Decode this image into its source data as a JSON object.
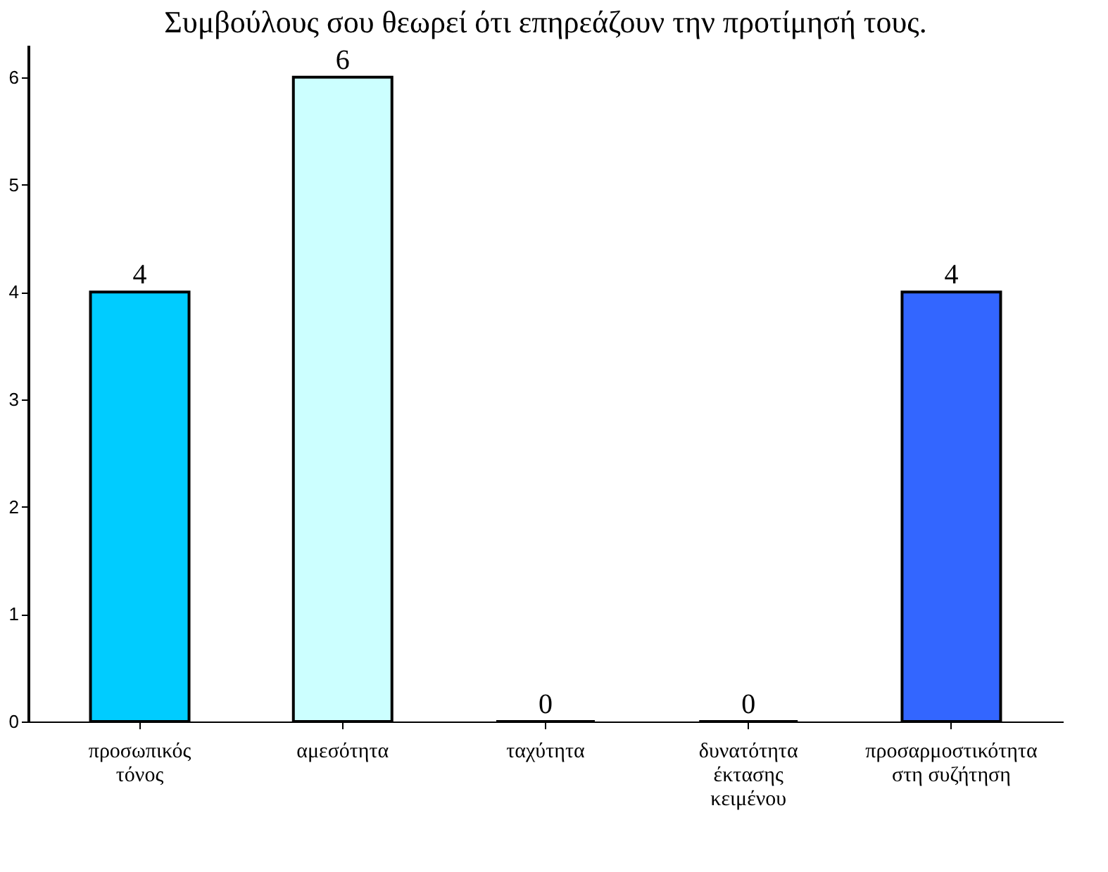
{
  "chart_data": {
    "type": "bar",
    "title": "Συμβούλους σου θεωρεί ότι επηρεάζουν την προτίμησή τους.",
    "categories": [
      "προσωπικός\nτόνος",
      "αμεσότητα",
      "ταχύτητα",
      "δυνατότητα\nέκτασης\nκειμένου",
      "προσαρμοστικότητα\nστη συζήτηση"
    ],
    "values": [
      4,
      6,
      0,
      0,
      4
    ],
    "colors": [
      "#00ccff",
      "#ccffff",
      "#000000",
      "#000000",
      "#3366ff"
    ],
    "ylim": [
      0,
      6.3
    ],
    "yticks": [
      0,
      1,
      2,
      3,
      4,
      5,
      6
    ],
    "grid": false,
    "data_labels": true
  }
}
